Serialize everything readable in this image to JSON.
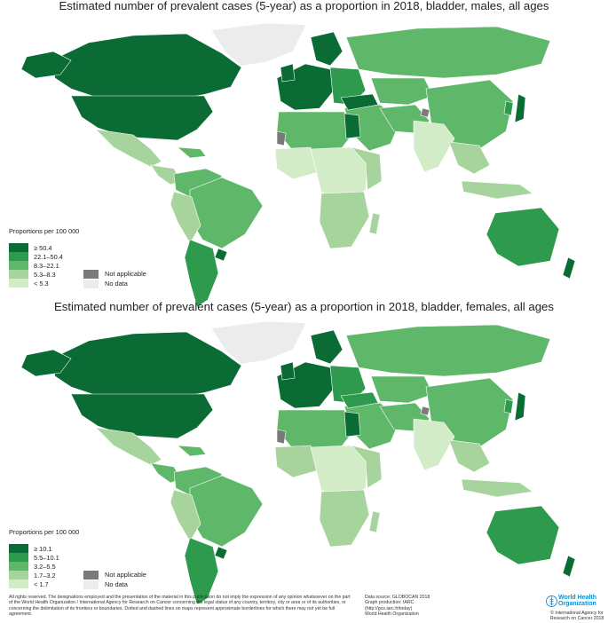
{
  "colors": {
    "c1": "#0a6b35",
    "c2": "#2e9a4e",
    "c3": "#5fb86a",
    "c4": "#a6d49c",
    "c5": "#d3ecc8",
    "na": "#7a7a7a",
    "nodata": "#ececec",
    "border": "#ffffff"
  },
  "panels": [
    {
      "title": "Estimated number of prevalent cases (5-year) as a proportion in 2018, bladder, males, all ages",
      "legend_title": "Proportions per 100 000",
      "bins": [
        "≥ 50.4",
        "22.1–50.4",
        "8.3–22.1",
        "5.3–8.3",
        "< 5.3"
      ],
      "not_applicable": "Not applicable",
      "no_data": "No data"
    },
    {
      "title": "Estimated number of prevalent cases (5-year) as a proportion in 2018, bladder, females, all ages",
      "legend_title": "Proportions per 100 000",
      "bins": [
        "≥ 10.1",
        "5.5–10.1",
        "3.2–5.5",
        "1.7–3.2",
        "< 1.7"
      ],
      "not_applicable": "Not applicable",
      "no_data": "No data"
    }
  ],
  "footer": {
    "disclaimer": "All rights reserved. The designations employed and the presentation of the material in this publication do not imply the expression of any opinion whatsoever on the part of the World Health Organization / International Agency for Research on Cancer concerning the legal status of any country, territory, city or area or of its authorities, or concerning the delimitation of its frontiers or boundaries. Dotted and dashed lines on maps represent approximate borderlines for which there may not yet be full agreement.",
    "source_line1": "Data source: GLOBOCAN 2018",
    "source_line2": "Graph production: IARC",
    "source_line3": "(http://gco.iarc.fr/today)",
    "source_line4": "World Health Organization",
    "who_name": "World Health Organization",
    "who_copyright": "© International Agency for Research on Cancer 2018"
  }
}
